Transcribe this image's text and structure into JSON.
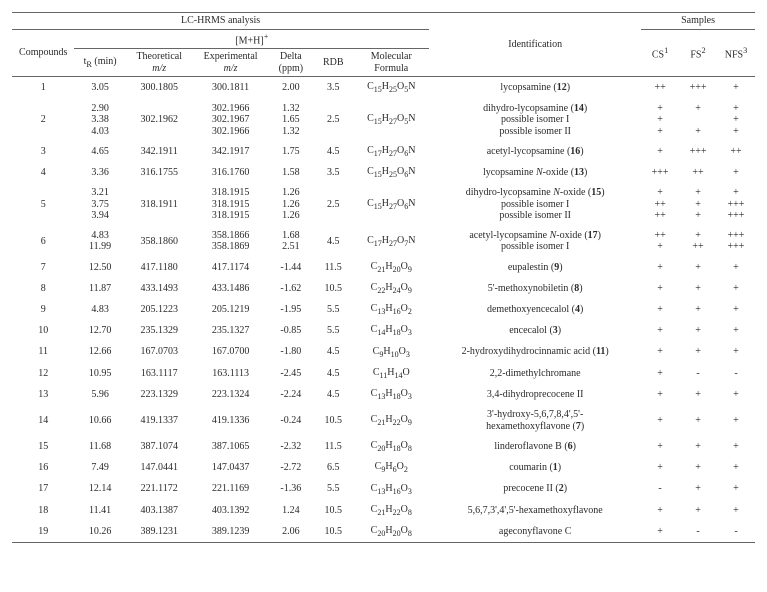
{
  "header": {
    "lchrms": "LC-HRMS analysis",
    "mh": "[M+H]",
    "mh_sup": "+",
    "samples": "Samples",
    "compounds": "Compounds",
    "tr": "t",
    "tr_sub": "R",
    "tr_unit": " (min)",
    "theoretical": "Theoretical",
    "experimental": "Experimental",
    "mz": "m/z",
    "delta": "Delta",
    "ppm": "(ppm)",
    "rdb": "RDB",
    "mf": "Molecular\nFormula",
    "identification": "Identification",
    "cs": "CS",
    "cs_sup": "1",
    "fs": "FS",
    "fs_sup": "2",
    "nfs": "NFS",
    "nfs_sup": "3"
  },
  "rows": [
    {
      "n": "1",
      "tr": [
        "3.05"
      ],
      "theo": "300.1805",
      "exp": [
        "300.1811"
      ],
      "delta": [
        "2.00"
      ],
      "rdb": "3.5",
      "mf": "C<sub>15</sub>H<sub>25</sub>O<sub>5</sub>N",
      "id": [
        "lycopsamine (<b>12</b>)"
      ],
      "cs": [
        "++"
      ],
      "fs": [
        "+++"
      ],
      "nfs": [
        "+"
      ]
    },
    {
      "n": "2",
      "tr": [
        "2.90",
        "3.38",
        "4.03"
      ],
      "theo": "302.1962",
      "exp": [
        "302.1966",
        "302.1967",
        "302.1966"
      ],
      "delta": [
        "1.32",
        "1.65",
        "1.32"
      ],
      "rdb": "2.5",
      "mf": "C<sub>15</sub>H<sub>27</sub>O<sub>5</sub>N",
      "id": [
        "dihydro-lycopsamine (<b>14</b>)",
        "possible isomer I",
        "possible isomer II"
      ],
      "cs": [
        "+",
        "+",
        "+"
      ],
      "fs": [
        "+",
        "",
        "+"
      ],
      "nfs": [
        "+",
        "+",
        "+"
      ]
    },
    {
      "n": "3",
      "tr": [
        "4.65"
      ],
      "theo": "342.1911",
      "exp": [
        "342.1917"
      ],
      "delta": [
        "1.75"
      ],
      "rdb": "4.5",
      "mf": "C<sub>17</sub>H<sub>27</sub>O<sub>6</sub>N",
      "id": [
        "acetyl-lycopsamine (<b>16</b>)"
      ],
      "cs": [
        "+"
      ],
      "fs": [
        "+++"
      ],
      "nfs": [
        "++"
      ]
    },
    {
      "n": "4",
      "tr": [
        "3.36"
      ],
      "theo": "316.1755",
      "exp": [
        "316.1760"
      ],
      "delta": [
        "1.58"
      ],
      "rdb": "3.5",
      "mf": "C<sub>15</sub>H<sub>25</sub>O<sub>6</sub>N",
      "id": [
        "lycopsamine <i>N</i>-oxide (<b>13</b>)"
      ],
      "cs": [
        "+++"
      ],
      "fs": [
        "++"
      ],
      "nfs": [
        "+"
      ]
    },
    {
      "n": "5",
      "tr": [
        "3.21",
        "3.75",
        "3.94"
      ],
      "theo": "318.1911",
      "exp": [
        "318.1915",
        "318.1915",
        "318.1915"
      ],
      "delta": [
        "1.26",
        "1.26",
        "1.26"
      ],
      "rdb": "2.5",
      "mf": "C<sub>15</sub>H<sub>27</sub>O<sub>6</sub>N",
      "id": [
        "dihydro-lycopsamine <i>N</i>-oxide (<b>15</b>)",
        "possible isomer I",
        "possible isomer II"
      ],
      "cs": [
        "+",
        "++",
        "++"
      ],
      "fs": [
        "+",
        "+",
        "+"
      ],
      "nfs": [
        "+",
        "+++",
        "+++"
      ]
    },
    {
      "n": "6",
      "tr": [
        "4.83",
        "11.99"
      ],
      "theo": "358.1860",
      "exp": [
        "358.1866",
        "358.1869"
      ],
      "delta": [
        "1.68",
        "2.51"
      ],
      "rdb": "4.5",
      "mf": "C<sub>17</sub>H<sub>27</sub>O<sub>7</sub>N",
      "id": [
        "acetyl-lycopsamine <i>N</i>-oxide (<b>17</b>)",
        "possible isomer I"
      ],
      "cs": [
        "++",
        "+"
      ],
      "fs": [
        "+",
        "++"
      ],
      "nfs": [
        "+++",
        "+++"
      ]
    },
    {
      "n": "7",
      "tr": [
        "12.50"
      ],
      "theo": "417.1180",
      "exp": [
        "417.1174"
      ],
      "delta": [
        "-1.44"
      ],
      "rdb": "11.5",
      "mf": "C<sub>21</sub>H<sub>20</sub>O<sub>9</sub>",
      "id": [
        "eupalestin (<b>9</b>)"
      ],
      "cs": [
        "+"
      ],
      "fs": [
        "+"
      ],
      "nfs": [
        "+"
      ]
    },
    {
      "n": "8",
      "tr": [
        "11.87"
      ],
      "theo": "433.1493",
      "exp": [
        "433.1486"
      ],
      "delta": [
        "-1.62"
      ],
      "rdb": "10.5",
      "mf": "C<sub>22</sub>H<sub>24</sub>O<sub>9</sub>",
      "id": [
        "5'-methoxynobiletin (<b>8</b>)"
      ],
      "cs": [
        "+"
      ],
      "fs": [
        "+"
      ],
      "nfs": [
        "+"
      ]
    },
    {
      "n": "9",
      "tr": [
        "4.83"
      ],
      "theo": "205.1223",
      "exp": [
        "205.1219"
      ],
      "delta": [
        "-1.95"
      ],
      "rdb": "5.5",
      "mf": "C<sub>13</sub>H<sub>16</sub>O<sub>2</sub>",
      "id": [
        "demethoxyencecalol (<b>4</b>)"
      ],
      "cs": [
        "+"
      ],
      "fs": [
        "+"
      ],
      "nfs": [
        "+"
      ]
    },
    {
      "n": "10",
      "tr": [
        "12.70"
      ],
      "theo": "235.1329",
      "exp": [
        "235.1327"
      ],
      "delta": [
        "-0.85"
      ],
      "rdb": "5.5",
      "mf": "C<sub>14</sub>H<sub>18</sub>O<sub>3</sub>",
      "id": [
        "encecalol (<b>3</b>)"
      ],
      "cs": [
        "+"
      ],
      "fs": [
        "+"
      ],
      "nfs": [
        "+"
      ]
    },
    {
      "n": "11",
      "tr": [
        "12.66"
      ],
      "theo": "167.0703",
      "exp": [
        "167.0700"
      ],
      "delta": [
        "-1.80"
      ],
      "rdb": "4.5",
      "mf": "C<sub>9</sub>H<sub>10</sub>O<sub>3</sub>",
      "id": [
        "2-hydroxydihydrocinnamic acid (<b>11</b>)"
      ],
      "cs": [
        "+"
      ],
      "fs": [
        "+"
      ],
      "nfs": [
        "+"
      ]
    },
    {
      "n": "12",
      "tr": [
        "10.95"
      ],
      "theo": "163.1117",
      "exp": [
        "163.1113"
      ],
      "delta": [
        "-2.45"
      ],
      "rdb": "4.5",
      "mf": "C<sub>11</sub>H<sub>14</sub>O",
      "id": [
        "2,2-dimethylchromane"
      ],
      "cs": [
        "+"
      ],
      "fs": [
        "-"
      ],
      "nfs": [
        "-"
      ]
    },
    {
      "n": "13",
      "tr": [
        "5.96"
      ],
      "theo": "223.1329",
      "exp": [
        "223.1324"
      ],
      "delta": [
        "-2.24"
      ],
      "rdb": "4.5",
      "mf": "C<sub>13</sub>H<sub>18</sub>O<sub>3</sub>",
      "id": [
        "3,4-dihydroprecocene II"
      ],
      "cs": [
        "+"
      ],
      "fs": [
        "+"
      ],
      "nfs": [
        "+"
      ]
    },
    {
      "n": "14",
      "tr": [
        "10.66"
      ],
      "theo": "419.1337",
      "exp": [
        "419.1336"
      ],
      "delta": [
        "-0.24"
      ],
      "rdb": "10.5",
      "mf": "C<sub>21</sub>H<sub>22</sub>O<sub>9</sub>",
      "id": [
        "3'-hydroxy-5,6,7,8,4',5'-<br>hexamethoxyflavone (<b>7</b>)"
      ],
      "cs": [
        "+"
      ],
      "fs": [
        "+"
      ],
      "nfs": [
        "+"
      ]
    },
    {
      "n": "15",
      "tr": [
        "11.68"
      ],
      "theo": "387.1074",
      "exp": [
        "387.1065"
      ],
      "delta": [
        "-2.32"
      ],
      "rdb": "11.5",
      "mf": "C<sub>20</sub>H<sub>18</sub>O<sub>8</sub>",
      "id": [
        "linderoflavone  B (<b>6</b>)"
      ],
      "cs": [
        "+"
      ],
      "fs": [
        "+"
      ],
      "nfs": [
        "+"
      ]
    },
    {
      "n": "16",
      "tr": [
        "7.49"
      ],
      "theo": "147.0441",
      "exp": [
        "147.0437"
      ],
      "delta": [
        "-2.72"
      ],
      "rdb": "6.5",
      "mf": "C<sub>9</sub>H<sub>6</sub>O<sub>2</sub>",
      "id": [
        "coumarin (<b>1</b>)"
      ],
      "cs": [
        "+"
      ],
      "fs": [
        "+"
      ],
      "nfs": [
        "+"
      ]
    },
    {
      "n": "17",
      "tr": [
        "12.14"
      ],
      "theo": "221.1172",
      "exp": [
        "221.1169"
      ],
      "delta": [
        "-1.36"
      ],
      "rdb": "5.5",
      "mf": "C<sub>13</sub>H<sub>16</sub>O<sub>3</sub>",
      "id": [
        "precocene II (<b>2</b>)"
      ],
      "cs": [
        "-"
      ],
      "fs": [
        "+"
      ],
      "nfs": [
        "+"
      ]
    },
    {
      "n": "18",
      "tr": [
        "11.41"
      ],
      "theo": "403.1387",
      "exp": [
        "403.1392"
      ],
      "delta": [
        "1.24"
      ],
      "rdb": "10.5",
      "mf": "C<sub>21</sub>H<sub>22</sub>O<sub>8</sub>",
      "id": [
        "5,6,7,3',4',5'-hexamethoxyflavone"
      ],
      "cs": [
        "+"
      ],
      "fs": [
        "+"
      ],
      "nfs": [
        "+"
      ]
    },
    {
      "n": "19",
      "tr": [
        "10.26"
      ],
      "theo": "389.1231",
      "exp": [
        "389.1239"
      ],
      "delta": [
        "2.06"
      ],
      "rdb": "10.5",
      "mf": "C<sub>20</sub>H<sub>20</sub>O<sub>8</sub>",
      "id": [
        "ageconyflavone C"
      ],
      "cs": [
        "+"
      ],
      "fs": [
        "-"
      ],
      "nfs": [
        "-"
      ]
    }
  ]
}
